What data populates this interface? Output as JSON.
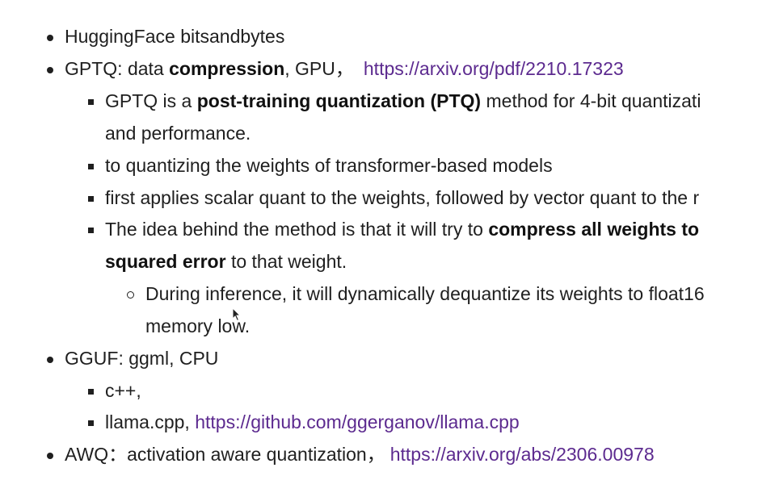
{
  "items": {
    "hf": {
      "text": "HuggingFace bitsandbytes"
    },
    "gptq": {
      "prefix": "GPTQ: data ",
      "bold": "compression",
      "suffix": ", GPU，",
      "link": "https://arxiv.org/pdf/2210.17323"
    },
    "gptq_sub1": {
      "prefix": "GPTQ is a ",
      "bold": "post-training quantization (PTQ)",
      "suffix": " method for 4-bit quantizati",
      "continuation": "and performance."
    },
    "gptq_sub2": {
      "text": "to quantizing the weights of transformer-based models"
    },
    "gptq_sub3": {
      "text": "first applies scalar quant to the weights, followed by vector quant to the r"
    },
    "gptq_sub4": {
      "prefix": "The idea behind the method is that it will try to ",
      "bold": "compress all weights to",
      "bold2": "squared error",
      "suffix2": " to that weight."
    },
    "gptq_sub4_child": {
      "text": "During inference, it will dynamically dequantize its weights to float16",
      "continuation": "memory low."
    },
    "gguf": {
      "text": "GGUF: ggml, CPU"
    },
    "gguf_sub1": {
      "text": "c++,"
    },
    "gguf_sub2": {
      "prefix": "llama.cpp, ",
      "link": "https://github.com/ggerganov/llama.cpp"
    },
    "awq": {
      "prefix": "AWQ：activation aware quantization，",
      "link": "https://arxiv.org/abs/2306.00978"
    }
  },
  "icons": {
    "level1": "bullet-disc-icon",
    "level2": "bullet-square-icon",
    "level3": "bullet-circle-icon",
    "cursor": "mouse-pointer-icon"
  },
  "colors": {
    "text": "#1f1f1f",
    "link": "#5c2a8f",
    "background": "#ffffff"
  }
}
